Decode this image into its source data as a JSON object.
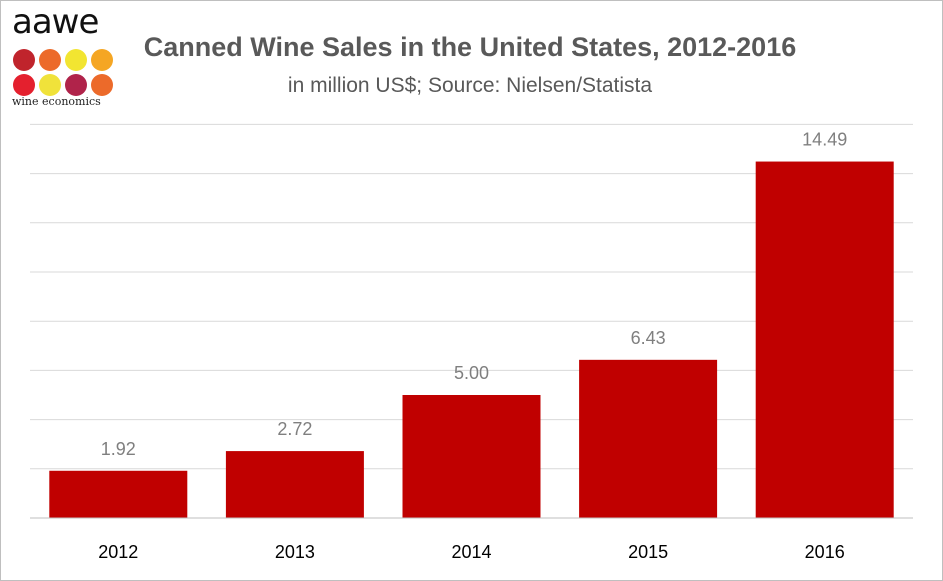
{
  "logo": {
    "word": "aawe",
    "tagline": "wine economics",
    "dot_colors": [
      "#c0242c",
      "#ec6a2a",
      "#f2e531",
      "#f5a623",
      "#e4202e",
      "#f0e23a",
      "#b0234a",
      "#ec6a2a"
    ]
  },
  "colors": {
    "bar": "#c00000",
    "grid": "#d9d9d9",
    "axis": "#bfbfbf",
    "title": "#595959",
    "data_label": "#7f7f7f"
  },
  "chart_data": {
    "type": "bar",
    "title": "Canned Wine Sales in the United States, 2012-2016",
    "subtitle": "in million US$; Source: Nielsen/Statista",
    "xlabel": "",
    "ylabel": "",
    "categories": [
      "2012",
      "2013",
      "2014",
      "2015",
      "2016"
    ],
    "values": [
      1.92,
      2.72,
      5.0,
      6.43,
      14.49
    ],
    "data_labels": [
      "1.92",
      "2.72",
      "5.00",
      "6.43",
      "14.49"
    ],
    "ylim": [
      0,
      16
    ],
    "grid_step": 2,
    "grid": true,
    "legend": "none"
  }
}
